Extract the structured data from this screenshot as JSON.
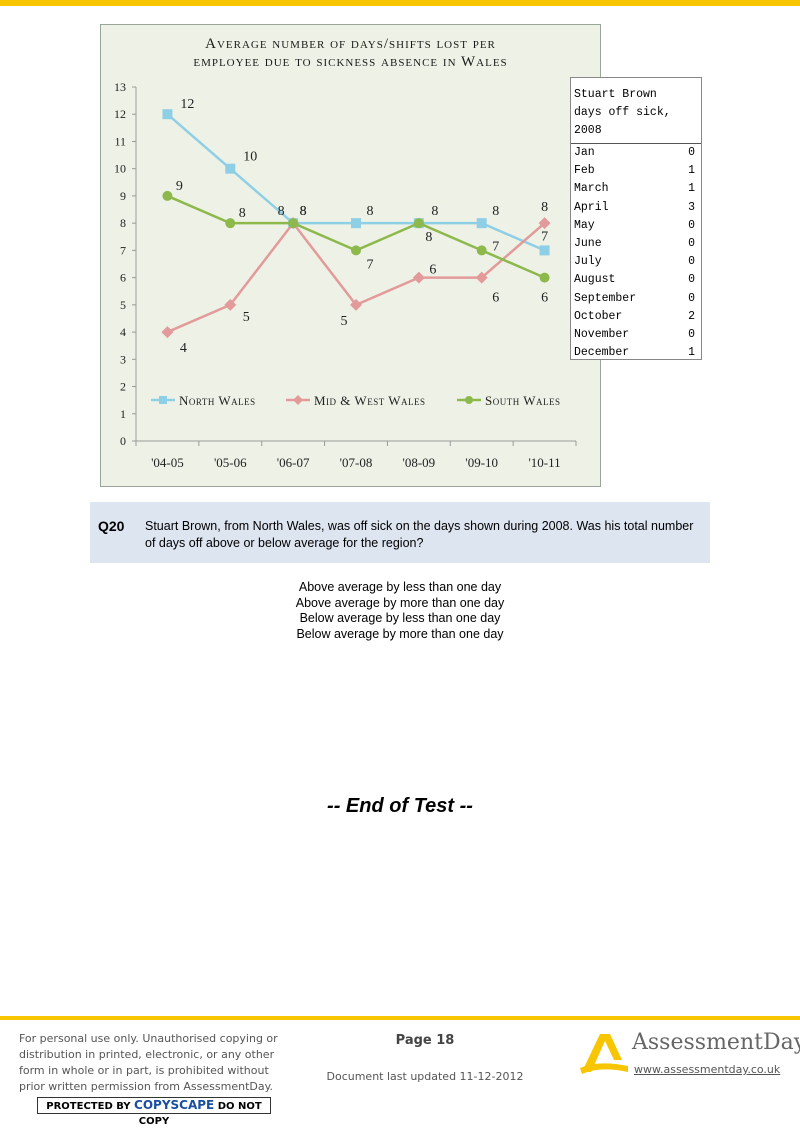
{
  "chart_data": {
    "type": "line",
    "title_line1": "Average number of days/shifts lost per",
    "title_line2": "employee due to sickness absence in Wales",
    "categories": [
      "'04-05",
      "'05-06",
      "'06-07",
      "'07-08",
      "'08-09",
      "'09-10",
      "'10-11"
    ],
    "ylim": [
      0,
      13
    ],
    "yticks": [
      "0",
      "1",
      "2",
      "3",
      "4",
      "5",
      "6",
      "7",
      "8",
      "9",
      "10",
      "11",
      "12",
      "13"
    ],
    "grid": true,
    "legend_position": "bottom",
    "series": [
      {
        "name": "North Wales",
        "color": "#8fcfe6",
        "marker": "square",
        "values": [
          12,
          10,
          8,
          8,
          8,
          8,
          7
        ]
      },
      {
        "name": "Mid & West Wales",
        "color": "#e39a9a",
        "marker": "diamond",
        "values": [
          4,
          5,
          8,
          5,
          6,
          6,
          8
        ]
      },
      {
        "name": "South Wales",
        "color": "#8cb84c",
        "marker": "circle",
        "values": [
          9,
          8,
          8,
          7,
          8,
          7,
          6
        ]
      }
    ]
  },
  "sick_table": {
    "heading_lines": [
      "Stuart Brown",
      "days off sick,",
      "2008"
    ],
    "rows": [
      {
        "month": "Jan",
        "days": "0"
      },
      {
        "month": "Feb",
        "days": "1"
      },
      {
        "month": "March",
        "days": "1"
      },
      {
        "month": "April",
        "days": "3"
      },
      {
        "month": "May",
        "days": "0"
      },
      {
        "month": "June",
        "days": "0"
      },
      {
        "month": "July",
        "days": "0"
      },
      {
        "month": "August",
        "days": "0"
      },
      {
        "month": "September",
        "days": "0"
      },
      {
        "month": "October",
        "days": "2"
      },
      {
        "month": "November",
        "days": "0"
      },
      {
        "month": "December",
        "days": "1"
      }
    ]
  },
  "question": {
    "number": "Q20",
    "text": "Stuart Brown, from North Wales, was off sick on the days shown during 2008.  Was his total number of days off above or below average for the region?"
  },
  "answers": [
    "Above average by less than one day",
    "Above average by more than one day",
    "Below average by less than one day",
    "Below average by more than one day"
  ],
  "end_text": "-- End of Test --",
  "footer": {
    "notice": "For personal use only. Unauthorised copying or distribution in printed, electronic, or any other form in whole or in part, is prohibited without prior written permission from AssessmentDay.",
    "copyscape_pre": "PROTECTED BY",
    "copyscape_mid": "COPYSCAPE",
    "copyscape_post": "DO NOT COPY",
    "page": "Page 18",
    "updated": "Document last updated 11-12-2012",
    "brand": "AssessmentDay",
    "website": "www.assessmentday.co.uk",
    "accent": "#f7c600"
  }
}
